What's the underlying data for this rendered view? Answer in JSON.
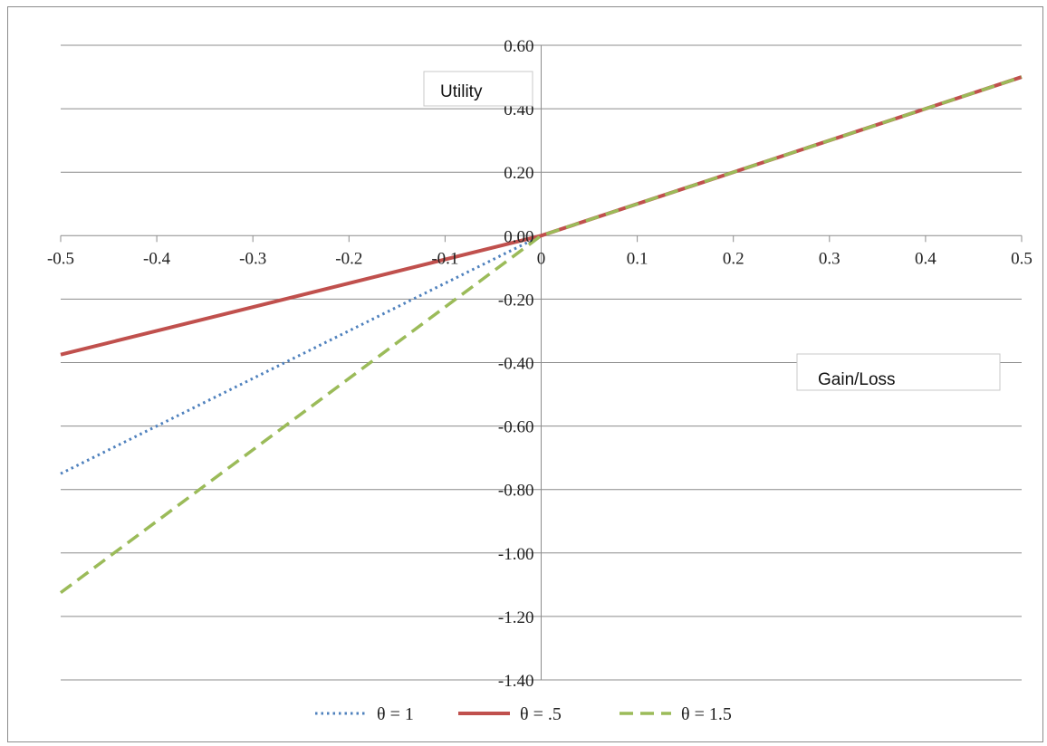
{
  "chart_data": {
    "type": "line",
    "xlabel": "Gain/Loss",
    "ylabel": "Utility",
    "x_ticks": [
      "-0.5",
      "-0.4",
      "-0.3",
      "-0.2",
      "-0.1",
      "0",
      "0.1",
      "0.2",
      "0.3",
      "0.4",
      "0.5"
    ],
    "y_ticks": [
      "0.60",
      "0.40",
      "0.20",
      "0.00",
      "-0.20",
      "-0.40",
      "-0.60",
      "-0.80",
      "-1.00",
      "-1.20",
      "-1.40"
    ],
    "xlim": [
      -0.5,
      0.5
    ],
    "ylim": [
      -1.4,
      0.6
    ],
    "grid": "horizontal",
    "legend_position": "bottom",
    "series": [
      {
        "name": "θ = 1",
        "color": "#4f81bd",
        "style": "dotted",
        "x": [
          -0.5,
          0,
          0.5
        ],
        "y": [
          -0.75,
          0,
          0.5
        ]
      },
      {
        "name": "θ = .5",
        "color": "#c0504d",
        "style": "solid",
        "x": [
          -0.5,
          0,
          0.5
        ],
        "y": [
          -0.375,
          0,
          0.5
        ]
      },
      {
        "name": "θ = 1.5",
        "color": "#9bbb59",
        "style": "dashed",
        "x": [
          -0.5,
          0,
          0.5
        ],
        "y": [
          -1.125,
          0,
          0.5
        ]
      }
    ]
  }
}
